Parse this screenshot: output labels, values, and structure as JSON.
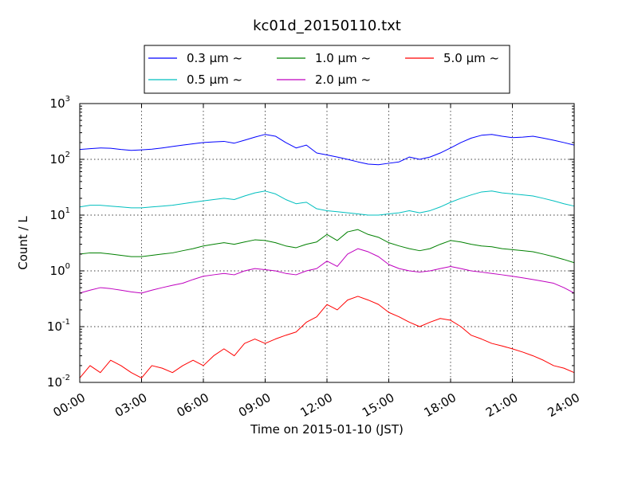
{
  "chart_data": {
    "type": "line",
    "title": "kc01d_20150110.txt",
    "xlabel": "Time on 2015-01-10 (JST)",
    "ylabel": "Count / L",
    "x_unit": "hour",
    "xlim": [
      0,
      24
    ],
    "x_ticks": [
      {
        "value": 0,
        "label": "00:00"
      },
      {
        "value": 3,
        "label": "03:00"
      },
      {
        "value": 6,
        "label": "06:00"
      },
      {
        "value": 9,
        "label": "09:00"
      },
      {
        "value": 12,
        "label": "12:00"
      },
      {
        "value": 15,
        "label": "15:00"
      },
      {
        "value": 18,
        "label": "18:00"
      },
      {
        "value": 21,
        "label": "21:00"
      },
      {
        "value": 24,
        "label": "24:00"
      }
    ],
    "y_scale": "log",
    "ylim": [
      0.01,
      1000
    ],
    "y_ticks": [
      {
        "value": 0.01,
        "base": "10",
        "exp": "-2"
      },
      {
        "value": 0.1,
        "base": "10",
        "exp": "-1"
      },
      {
        "value": 1,
        "base": "10",
        "exp": "0"
      },
      {
        "value": 10,
        "base": "10",
        "exp": "1"
      },
      {
        "value": 100,
        "base": "10",
        "exp": "2"
      },
      {
        "value": 1000,
        "base": "10",
        "exp": "3"
      }
    ],
    "grid": true,
    "legend_position": "top-center-outside",
    "series": [
      {
        "name": "0.3 μm ~",
        "color": "#0000ff",
        "x": [
          0,
          0.5,
          1,
          1.5,
          2,
          2.5,
          3,
          3.5,
          4,
          4.5,
          5,
          5.5,
          6,
          6.5,
          7,
          7.5,
          8,
          8.5,
          9,
          9.5,
          10,
          10.5,
          11,
          11.5,
          12,
          12.5,
          13,
          13.5,
          14,
          14.5,
          15,
          15.5,
          16,
          16.5,
          17,
          17.5,
          18,
          18.5,
          19,
          19.5,
          20,
          20.5,
          21,
          21.5,
          22,
          22.5,
          23,
          23.5,
          24
        ],
        "y": [
          150,
          155,
          160,
          158,
          150,
          145,
          148,
          152,
          160,
          170,
          180,
          190,
          200,
          205,
          210,
          195,
          220,
          250,
          280,
          260,
          200,
          160,
          180,
          130,
          120,
          110,
          100,
          90,
          82,
          80,
          85,
          90,
          110,
          100,
          110,
          130,
          160,
          200,
          240,
          270,
          280,
          260,
          245,
          250,
          260,
          240,
          220,
          200,
          180
        ]
      },
      {
        "name": "0.5 μm ~",
        "color": "#00bfbf",
        "x": [
          0,
          0.5,
          1,
          1.5,
          2,
          2.5,
          3,
          3.5,
          4,
          4.5,
          5,
          5.5,
          6,
          6.5,
          7,
          7.5,
          8,
          8.5,
          9,
          9.5,
          10,
          10.5,
          11,
          11.5,
          12,
          12.5,
          13,
          13.5,
          14,
          14.5,
          15,
          15.5,
          16,
          16.5,
          17,
          17.5,
          18,
          18.5,
          19,
          19.5,
          20,
          20.5,
          21,
          21.5,
          22,
          22.5,
          23,
          23.5,
          24
        ],
        "y": [
          14,
          15,
          15,
          14.5,
          14,
          13.5,
          13.5,
          14,
          14.5,
          15,
          16,
          17,
          18,
          19,
          20,
          19,
          22,
          25,
          27,
          24,
          19,
          16,
          17,
          13,
          12,
          11.5,
          11,
          10.5,
          10,
          10,
          10.5,
          11,
          12,
          11,
          12,
          14,
          17,
          20,
          23,
          26,
          27,
          25,
          24,
          23,
          22,
          20,
          18,
          16,
          14.5
        ]
      },
      {
        "name": "1.0 μm ~",
        "color": "#008000",
        "x": [
          0,
          0.5,
          1,
          1.5,
          2,
          2.5,
          3,
          3.5,
          4,
          4.5,
          5,
          5.5,
          6,
          6.5,
          7,
          7.5,
          8,
          8.5,
          9,
          9.5,
          10,
          10.5,
          11,
          11.5,
          12,
          12.5,
          13,
          13.5,
          14,
          14.5,
          15,
          15.5,
          16,
          16.5,
          17,
          17.5,
          18,
          18.5,
          19,
          19.5,
          20,
          20.5,
          21,
          21.5,
          22,
          22.5,
          23,
          23.5,
          24
        ],
        "y": [
          2,
          2.1,
          2.1,
          2,
          1.9,
          1.8,
          1.8,
          1.9,
          2,
          2.1,
          2.3,
          2.5,
          2.8,
          3,
          3.2,
          3,
          3.3,
          3.6,
          3.5,
          3.2,
          2.8,
          2.6,
          3,
          3.3,
          4.5,
          3.5,
          5,
          5.5,
          4.5,
          4,
          3.2,
          2.8,
          2.5,
          2.3,
          2.5,
          3,
          3.5,
          3.3,
          3,
          2.8,
          2.7,
          2.5,
          2.4,
          2.3,
          2.2,
          2,
          1.8,
          1.6,
          1.4
        ]
      },
      {
        "name": "2.0 μm ~",
        "color": "#bf00bf",
        "x": [
          0,
          0.5,
          1,
          1.5,
          2,
          2.5,
          3,
          3.5,
          4,
          4.5,
          5,
          5.5,
          6,
          6.5,
          7,
          7.5,
          8,
          8.5,
          9,
          9.5,
          10,
          10.5,
          11,
          11.5,
          12,
          12.5,
          13,
          13.5,
          14,
          14.5,
          15,
          15.5,
          16,
          16.5,
          17,
          17.5,
          18,
          18.5,
          19,
          19.5,
          20,
          20.5,
          21,
          21.5,
          22,
          22.5,
          23,
          23.5,
          24
        ],
        "y": [
          0.4,
          0.45,
          0.5,
          0.48,
          0.45,
          0.42,
          0.4,
          0.45,
          0.5,
          0.55,
          0.6,
          0.7,
          0.8,
          0.85,
          0.9,
          0.85,
          1,
          1.1,
          1.05,
          1,
          0.9,
          0.85,
          1,
          1.1,
          1.5,
          1.2,
          2,
          2.5,
          2.2,
          1.8,
          1.3,
          1.1,
          1,
          0.95,
          1,
          1.1,
          1.2,
          1.1,
          1,
          0.95,
          0.9,
          0.85,
          0.8,
          0.75,
          0.7,
          0.65,
          0.6,
          0.5,
          0.4
        ]
      },
      {
        "name": "5.0 μm ~",
        "color": "#ff0000",
        "x": [
          0,
          0.5,
          1,
          1.5,
          2,
          2.5,
          3,
          3.5,
          4,
          4.5,
          5,
          5.5,
          6,
          6.5,
          7,
          7.5,
          8,
          8.5,
          9,
          9.5,
          10,
          10.5,
          11,
          11.5,
          12,
          12.5,
          13,
          13.5,
          14,
          14.5,
          15,
          15.5,
          16,
          16.5,
          17,
          17.5,
          18,
          18.5,
          19,
          19.5,
          20,
          20.5,
          21,
          21.5,
          22,
          22.5,
          23,
          23.5,
          24
        ],
        "y": [
          0.012,
          0.02,
          0.015,
          0.025,
          0.02,
          0.015,
          0.012,
          0.02,
          0.018,
          0.015,
          0.02,
          0.025,
          0.02,
          0.03,
          0.04,
          0.03,
          0.05,
          0.06,
          0.05,
          0.06,
          0.07,
          0.08,
          0.12,
          0.15,
          0.25,
          0.2,
          0.3,
          0.35,
          0.3,
          0.25,
          0.18,
          0.15,
          0.12,
          0.1,
          0.12,
          0.14,
          0.13,
          0.1,
          0.07,
          0.06,
          0.05,
          0.045,
          0.04,
          0.035,
          0.03,
          0.025,
          0.02,
          0.018,
          0.015
        ]
      }
    ]
  }
}
